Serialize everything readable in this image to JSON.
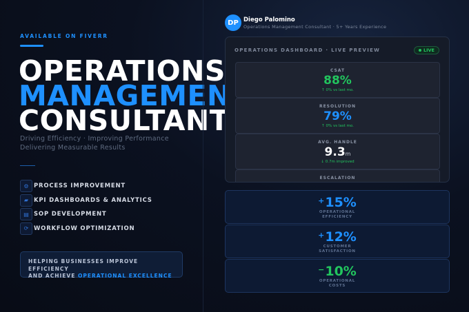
{
  "availability": "AVAILABLE ON FIVERR",
  "title": {
    "line1": "OPERATIONS",
    "line2": "MANAGEMENT",
    "line3": "CONSULTANT"
  },
  "subtitle": {
    "line1": "Driving Efficiency · Improving Performance",
    "line2": "Delivering Measurable Results"
  },
  "services": [
    {
      "label": "PROCESS IMPROVEMENT",
      "icon": "gear-icon",
      "glyph": "⚙"
    },
    {
      "label": "KPI DASHBOARDS & ANALYTICS",
      "icon": "chart-icon",
      "glyph": "▰"
    },
    {
      "label": "SOP DEVELOPMENT",
      "icon": "document-icon",
      "glyph": "▤"
    },
    {
      "label": "WORKFLOW OPTIMIZATION",
      "icon": "workflow-icon",
      "glyph": "⟳"
    }
  ],
  "callout": {
    "line1": "HELPING BUSINESSES IMPROVE EFFICIENCY",
    "line2_prefix": "AND ACHIEVE",
    "line2_highlight": "OPERATIONAL EXCELLENCE"
  },
  "profile": {
    "initials": "DP",
    "name": "Diego Palomino",
    "role": "Operations Management Consultant · 5+ Years Experience"
  },
  "dashboard": {
    "title": "OPERATIONS DASHBOARD · LIVE PREVIEW",
    "live_label": "LIVE",
    "metrics": [
      {
        "label": "CSAT",
        "value": "88%",
        "unit": "",
        "delta": "↑ 0% vs last mo.",
        "color": "#22c55e"
      },
      {
        "label": "RESOLUTION",
        "value": "79%",
        "unit": "",
        "delta": "↑ 0% vs last mo.",
        "color": "#1e90ff"
      },
      {
        "label": "AVG. HANDLE",
        "value": "9.3",
        "unit": "m",
        "delta": "↓ 0.7m improved",
        "color": "#ffffff"
      },
      {
        "label": "ESCALATION",
        "value": "",
        "unit": "",
        "delta": "",
        "color": "#ffffff"
      }
    ]
  },
  "kpis": [
    {
      "sign": "+",
      "value": "15%",
      "label_line1": "OPERATIONAL",
      "label_line2": "EFFICIENCY",
      "color": "#1e90ff"
    },
    {
      "sign": "+",
      "value": "12%",
      "label_line1": "CUSTOMER",
      "label_line2": "SATISFACTION",
      "color": "#1e90ff"
    },
    {
      "sign": "−",
      "value": "10%",
      "label_line1": "OPERATIONAL",
      "label_line2": "COSTS",
      "color": "#22c55e"
    }
  ],
  "colors": {
    "accent": "#1e90ff",
    "success": "#22c55e",
    "background": "#0b1120"
  }
}
